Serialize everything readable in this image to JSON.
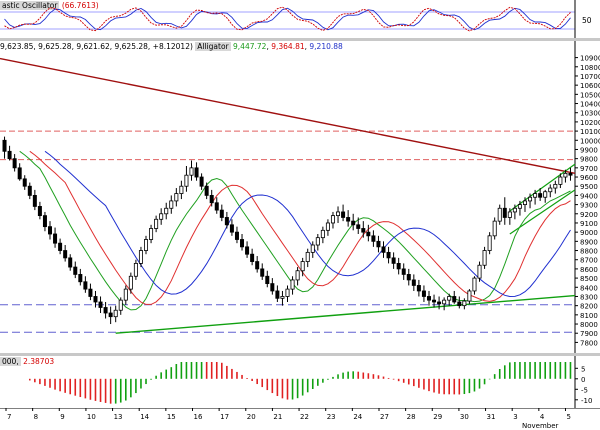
{
  "stochastic": {
    "label": "astic Oscillator",
    "value": "(66.7613)",
    "level": "50",
    "colors": {
      "k": "#d00000",
      "d": "#2030d0"
    }
  },
  "price": {
    "ohlc": "9,623.85, 9,625.28, 9,621.62, 9,625.28, +8.12012)",
    "indicator": "Alligator",
    "jaw": "9,447.72",
    "teeth": "9,364.81",
    "lips": "9,210.88",
    "y_ticks": [
      "10900",
      "10800",
      "10700",
      "10600",
      "10500",
      "10400",
      "10300",
      "10200",
      "10100",
      "10000",
      "9900",
      "9800",
      "9700",
      "9600",
      "9500",
      "9400",
      "9300",
      "9200",
      "9100",
      "9000",
      "8900",
      "8800",
      "8700",
      "8600",
      "8500",
      "8400",
      "8300",
      "8200",
      "8100",
      "8000",
      "7900",
      "7800"
    ]
  },
  "ao": {
    "label": "000,",
    "value": "2.38703",
    "y_ticks": [
      "5",
      "0",
      "-5",
      "-10"
    ],
    "colors": {
      "up": "#10a010",
      "down": "#e02020"
    }
  },
  "xaxis": {
    "labels": [
      "7",
      "8",
      "9",
      "10",
      "13",
      "14",
      "15",
      "16",
      "17",
      "20",
      "21",
      "22",
      "23",
      "24",
      "27",
      "28",
      "29",
      "30",
      "31",
      "3",
      "4",
      "5"
    ],
    "month": "November"
  },
  "chart_data": {
    "type": "candlestick",
    "candles": [
      [
        10000,
        10040,
        9800,
        9880
      ],
      [
        9880,
        9940,
        9780,
        9800
      ],
      [
        9800,
        9850,
        9660,
        9700
      ],
      [
        9700,
        9750,
        9560,
        9580
      ],
      [
        9580,
        9620,
        9460,
        9500
      ],
      [
        9500,
        9540,
        9360,
        9400
      ],
      [
        9400,
        9460,
        9240,
        9280
      ],
      [
        9280,
        9330,
        9140,
        9180
      ],
      [
        9180,
        9220,
        9010,
        9060
      ],
      [
        9060,
        9120,
        8920,
        8980
      ],
      [
        8980,
        9050,
        8830,
        8880
      ],
      [
        8880,
        8930,
        8760,
        8800
      ],
      [
        8800,
        8860,
        8680,
        8720
      ],
      [
        8720,
        8760,
        8580,
        8620
      ],
      [
        8620,
        8680,
        8500,
        8540
      ],
      [
        8540,
        8600,
        8420,
        8460
      ],
      [
        8460,
        8520,
        8340,
        8380
      ],
      [
        8380,
        8440,
        8260,
        8300
      ],
      [
        8300,
        8360,
        8180,
        8240
      ],
      [
        8240,
        8300,
        8120,
        8180
      ],
      [
        8180,
        8240,
        8060,
        8120
      ],
      [
        8120,
        8190,
        8000,
        8080
      ],
      [
        8080,
        8200,
        8020,
        8150
      ],
      [
        8150,
        8290,
        8100,
        8260
      ],
      [
        8260,
        8420,
        8210,
        8380
      ],
      [
        8380,
        8560,
        8330,
        8520
      ],
      [
        8520,
        8700,
        8480,
        8660
      ],
      [
        8660,
        8840,
        8620,
        8800
      ],
      [
        8800,
        8960,
        8760,
        8920
      ],
      [
        8920,
        9080,
        8880,
        9040
      ],
      [
        9040,
        9180,
        9000,
        9140
      ],
      [
        9140,
        9260,
        9080,
        9200
      ],
      [
        9200,
        9320,
        9140,
        9260
      ],
      [
        9260,
        9400,
        9200,
        9340
      ],
      [
        9340,
        9480,
        9280,
        9420
      ],
      [
        9420,
        9560,
        9360,
        9500
      ],
      [
        9500,
        9720,
        9440,
        9620
      ],
      [
        9620,
        9780,
        9560,
        9700
      ],
      [
        9700,
        9760,
        9560,
        9600
      ],
      [
        9600,
        9640,
        9460,
        9500
      ],
      [
        9500,
        9540,
        9360,
        9400
      ],
      [
        9400,
        9460,
        9280,
        9320
      ],
      [
        9320,
        9380,
        9200,
        9240
      ],
      [
        9240,
        9300,
        9120,
        9160
      ],
      [
        9160,
        9220,
        9040,
        9080
      ],
      [
        9080,
        9140,
        8960,
        9000
      ],
      [
        9000,
        9060,
        8880,
        8920
      ],
      [
        8920,
        8980,
        8800,
        8840
      ],
      [
        8840,
        8900,
        8720,
        8760
      ],
      [
        8760,
        8820,
        8640,
        8680
      ],
      [
        8680,
        8740,
        8560,
        8600
      ],
      [
        8600,
        8660,
        8480,
        8520
      ],
      [
        8520,
        8580,
        8400,
        8440
      ],
      [
        8440,
        8500,
        8320,
        8360
      ],
      [
        8360,
        8420,
        8240,
        8280
      ],
      [
        8280,
        8360,
        8200,
        8300
      ],
      [
        8300,
        8420,
        8240,
        8380
      ],
      [
        8380,
        8520,
        8320,
        8480
      ],
      [
        8480,
        8620,
        8420,
        8580
      ],
      [
        8580,
        8720,
        8520,
        8680
      ],
      [
        8680,
        8820,
        8620,
        8780
      ],
      [
        8780,
        8900,
        8720,
        8860
      ],
      [
        8860,
        8980,
        8800,
        8940
      ],
      [
        8940,
        9060,
        8880,
        9020
      ],
      [
        9020,
        9140,
        8960,
        9100
      ],
      [
        9100,
        9220,
        9040,
        9180
      ],
      [
        9180,
        9280,
        9100,
        9220
      ],
      [
        9220,
        9300,
        9120,
        9160
      ],
      [
        9160,
        9240,
        9060,
        9120
      ],
      [
        9120,
        9200,
        9020,
        9080
      ],
      [
        9080,
        9160,
        8980,
        9040
      ],
      [
        9040,
        9120,
        8940,
        9000
      ],
      [
        9000,
        9080,
        8900,
        8960
      ],
      [
        8960,
        9020,
        8840,
        8900
      ],
      [
        8900,
        8960,
        8780,
        8840
      ],
      [
        8840,
        8900,
        8720,
        8780
      ],
      [
        8780,
        8840,
        8660,
        8720
      ],
      [
        8720,
        8780,
        8600,
        8660
      ],
      [
        8660,
        8720,
        8540,
        8600
      ],
      [
        8600,
        8660,
        8480,
        8540
      ],
      [
        8540,
        8600,
        8420,
        8480
      ],
      [
        8480,
        8540,
        8360,
        8420
      ],
      [
        8420,
        8480,
        8300,
        8360
      ],
      [
        8360,
        8420,
        8240,
        8300
      ],
      [
        8300,
        8360,
        8200,
        8260
      ],
      [
        8260,
        8320,
        8180,
        8240
      ],
      [
        8240,
        8300,
        8160,
        8220
      ],
      [
        8220,
        8290,
        8150,
        8260
      ],
      [
        8260,
        8330,
        8200,
        8300
      ],
      [
        8300,
        8360,
        8220,
        8240
      ],
      [
        8240,
        8300,
        8170,
        8200
      ],
      [
        8200,
        8280,
        8160,
        8250
      ],
      [
        8250,
        8380,
        8220,
        8360
      ],
      [
        8360,
        8520,
        8320,
        8500
      ],
      [
        8500,
        8680,
        8460,
        8640
      ],
      [
        8640,
        8840,
        8600,
        8800
      ],
      [
        8800,
        9000,
        8760,
        8960
      ],
      [
        8960,
        9160,
        8920,
        9120
      ],
      [
        9120,
        9300,
        9080,
        9260
      ],
      [
        9260,
        9380,
        9080,
        9160
      ],
      [
        9160,
        9260,
        9080,
        9220
      ],
      [
        9220,
        9300,
        9140,
        9260
      ],
      [
        9260,
        9340,
        9180,
        9300
      ],
      [
        9300,
        9380,
        9220,
        9340
      ],
      [
        9340,
        9420,
        9260,
        9380
      ],
      [
        9380,
        9460,
        9300,
        9420
      ],
      [
        9420,
        9480,
        9340,
        9380
      ],
      [
        9380,
        9460,
        9320,
        9440
      ],
      [
        9440,
        9520,
        9380,
        9480
      ],
      [
        9480,
        9560,
        9420,
        9520
      ],
      [
        9520,
        9640,
        9480,
        9600
      ],
      [
        9600,
        9680,
        9540,
        9640
      ],
      [
        9640,
        9700,
        9560,
        9620
      ]
    ],
    "alligator": {
      "jaw": {
        "color": "#2030d0"
      },
      "teeth": {
        "color": "#e03030"
      },
      "lips": {
        "color": "#20a020"
      }
    },
    "ylim": [
      7750,
      10950
    ]
  }
}
